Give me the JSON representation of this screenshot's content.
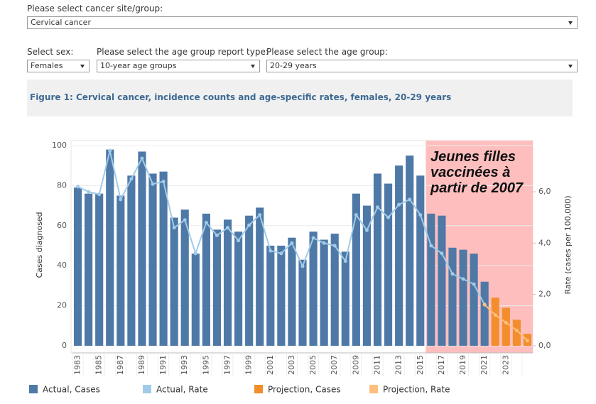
{
  "controls": {
    "site_label": "Please select cancer site/group:",
    "site_value": "Cervical cancer",
    "sex_label": "Select sex:",
    "sex_value": "Females",
    "report_label": "Please select the age group report type:",
    "report_value": "10-year age groups",
    "age_label": "Please select the age group:",
    "age_value": "20-29 years"
  },
  "chart_data": {
    "type": "bar_line",
    "title": "Figure 1: Cervical cancer, incidence counts and age-specific rates, females, 20-29 years",
    "ylabel": "Cases diagnosed",
    "y2label": "Rate (cases per 100,000)",
    "annotation": "Jeunes filles vaccinées à partir de 2007",
    "categories": [
      "1983",
      null,
      "1985",
      null,
      "1987",
      null,
      "1989",
      null,
      "1991",
      null,
      "1993",
      null,
      "1995",
      null,
      "1997",
      null,
      "1999",
      null,
      "2001",
      null,
      "2003",
      null,
      "2005",
      null,
      "2007",
      null,
      "2009",
      null,
      "2011",
      null,
      "2013",
      null,
      "2015",
      null,
      "2017",
      null,
      "2019",
      null,
      "2021",
      null,
      "2023",
      null,
      null
    ],
    "series": [
      {
        "name": "Actual, Cases",
        "color": "#4e79a7",
        "kind": "bar",
        "values": [
          79,
          76,
          76,
          98,
          75,
          85,
          97,
          86,
          87,
          64,
          68,
          46,
          66,
          58,
          63,
          57,
          65,
          69,
          50,
          50,
          54,
          43,
          57,
          53,
          56,
          47,
          76,
          70,
          86,
          81,
          90,
          95,
          85,
          66,
          65,
          49,
          48,
          46,
          32,
          null,
          null,
          null,
          null
        ]
      },
      {
        "name": "Actual, Rate",
        "color": "#a0cbe8",
        "kind": "line",
        "axis": "y2",
        "values": [
          6.2,
          6.0,
          5.9,
          7.6,
          5.7,
          6.5,
          7.3,
          6.3,
          6.4,
          4.6,
          4.9,
          3.6,
          4.8,
          4.3,
          4.6,
          4.1,
          4.7,
          5.1,
          3.7,
          3.6,
          4.0,
          3.1,
          4.2,
          4.0,
          3.9,
          3.3,
          5.1,
          4.5,
          5.4,
          5.0,
          5.5,
          5.7,
          5.1,
          3.9,
          3.6,
          2.8,
          2.6,
          2.4,
          1.6,
          null,
          null,
          null,
          null
        ]
      },
      {
        "name": "Projection, Cases",
        "color": "#f28e2b",
        "kind": "bar",
        "values": [
          null,
          null,
          null,
          null,
          null,
          null,
          null,
          null,
          null,
          null,
          null,
          null,
          null,
          null,
          null,
          null,
          null,
          null,
          null,
          null,
          null,
          null,
          null,
          null,
          null,
          null,
          null,
          null,
          null,
          null,
          null,
          null,
          null,
          null,
          null,
          null,
          null,
          null,
          null,
          24,
          19,
          13,
          6
        ]
      },
      {
        "name": "Projection, Rate",
        "color": "#ffbe7d",
        "kind": "line",
        "axis": "y2",
        "values": [
          null,
          null,
          null,
          null,
          null,
          null,
          null,
          null,
          null,
          null,
          null,
          null,
          null,
          null,
          null,
          null,
          null,
          null,
          null,
          null,
          null,
          null,
          null,
          null,
          null,
          null,
          null,
          null,
          null,
          null,
          null,
          null,
          null,
          null,
          null,
          null,
          null,
          null,
          1.6,
          1.2,
          0.9,
          0.6,
          0.2
        ]
      }
    ],
    "ylim": [
      0,
      100
    ],
    "yticks": [
      0,
      20,
      40,
      60,
      80,
      100
    ],
    "y2lim": [
      0,
      7.8
    ],
    "y2ticks": [
      {
        "value": 0,
        "label": "0,0"
      },
      {
        "value": 2,
        "label": "2,0"
      },
      {
        "value": 4,
        "label": "4,0"
      },
      {
        "value": 6,
        "label": "6,0"
      }
    ],
    "grid": true,
    "legend": "bottom"
  }
}
